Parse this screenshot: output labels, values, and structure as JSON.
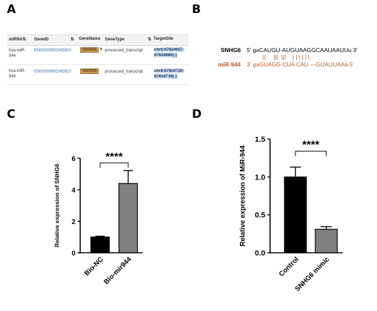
{
  "panels": {
    "a": "A",
    "b": "B",
    "c": "C",
    "d": "D"
  },
  "table": {
    "columns": [
      "miRNA",
      "GeneID",
      "GeneName",
      "GeneType",
      "TargetSite"
    ],
    "rows": [
      {
        "mirna_line1": "hsa-miR-",
        "mirna_line2": "944",
        "gene_id": "ENSG00000245910",
        "gene_name": "SNHG6",
        "gene_type": "processed_transcript",
        "site_line1": "chr8:67834657-",
        "site_line2": "67834680[-]"
      },
      {
        "mirna_line1": "hsa-miR-",
        "mirna_line2": "944",
        "gene_id": "ENSG00000245910",
        "gene_name": "SNHG6",
        "gene_type": "processed_transcript",
        "site_line1": "chr8:67834720-",
        "site_line2": "67834739[-]"
      }
    ]
  },
  "alignment": {
    "snhg6_label": "SNHG6",
    "snhg6_seq": "5’ gaCAUGU-AUGUAAGGCAAUAAUUu 3’",
    "pairs": "|| :   |||  |||    | | | | | |",
    "mir_label": "miR-944",
    "mir_seq": "3’ gaGUAGG CUA CAU ---GUAUUAAa 5’"
  },
  "chart_data": [
    {
      "type": "bar",
      "categories": [
        "Bio-NC",
        "Bio-mir944"
      ],
      "values": [
        1.0,
        4.4
      ],
      "errors": [
        0.05,
        0.82
      ],
      "colors": [
        "#000000",
        "#808080"
      ],
      "ylabel": "Relative expression of SNHG6",
      "ylim": [
        0,
        6
      ],
      "yticks": [
        0,
        2,
        4,
        6
      ],
      "significance": "****"
    },
    {
      "type": "bar",
      "categories": [
        "Control",
        "SNHG6 mimic"
      ],
      "values": [
        1.0,
        0.31
      ],
      "errors": [
        0.13,
        0.035
      ],
      "colors": [
        "#000000",
        "#808080"
      ],
      "ylabel": "Relative expression of MiR-944",
      "ylim": [
        0,
        1.5
      ],
      "yticks": [
        0.0,
        0.5,
        1.0,
        1.5
      ],
      "ytick_labels": [
        "0.0",
        "0.5",
        "1.0",
        "1.5"
      ],
      "significance": "****"
    }
  ]
}
